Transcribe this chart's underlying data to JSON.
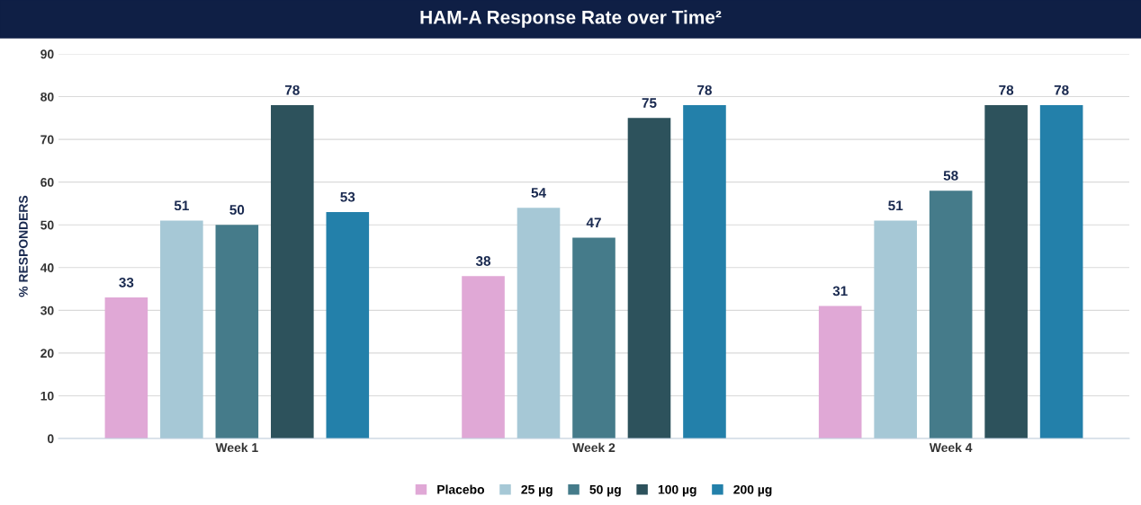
{
  "chart_data": {
    "type": "bar",
    "title": "HAM-A Response Rate over Time²",
    "ylabel": "% RESPONDERS",
    "categories": [
      "Week 1",
      "Week 2",
      "Week 4"
    ],
    "series": [
      {
        "name": "Placebo",
        "color": "#e0a8d6",
        "values": [
          33,
          38,
          31
        ]
      },
      {
        "name": "25 µg",
        "color": "#a6c8d6",
        "values": [
          51,
          54,
          51
        ]
      },
      {
        "name": "50 µg",
        "color": "#457b8a",
        "values": [
          50,
          47,
          58
        ]
      },
      {
        "name": "100 µg",
        "color": "#2d525c",
        "values": [
          78,
          75,
          78
        ]
      },
      {
        "name": "200 µg",
        "color": "#2380aa",
        "values": [
          53,
          78,
          78
        ]
      }
    ],
    "ylim": [
      0,
      90
    ],
    "yticks": [
      0,
      10,
      20,
      30,
      40,
      50,
      60,
      70,
      80,
      90
    ],
    "grid": "y",
    "legend": "bottom",
    "data_labels": true
  }
}
